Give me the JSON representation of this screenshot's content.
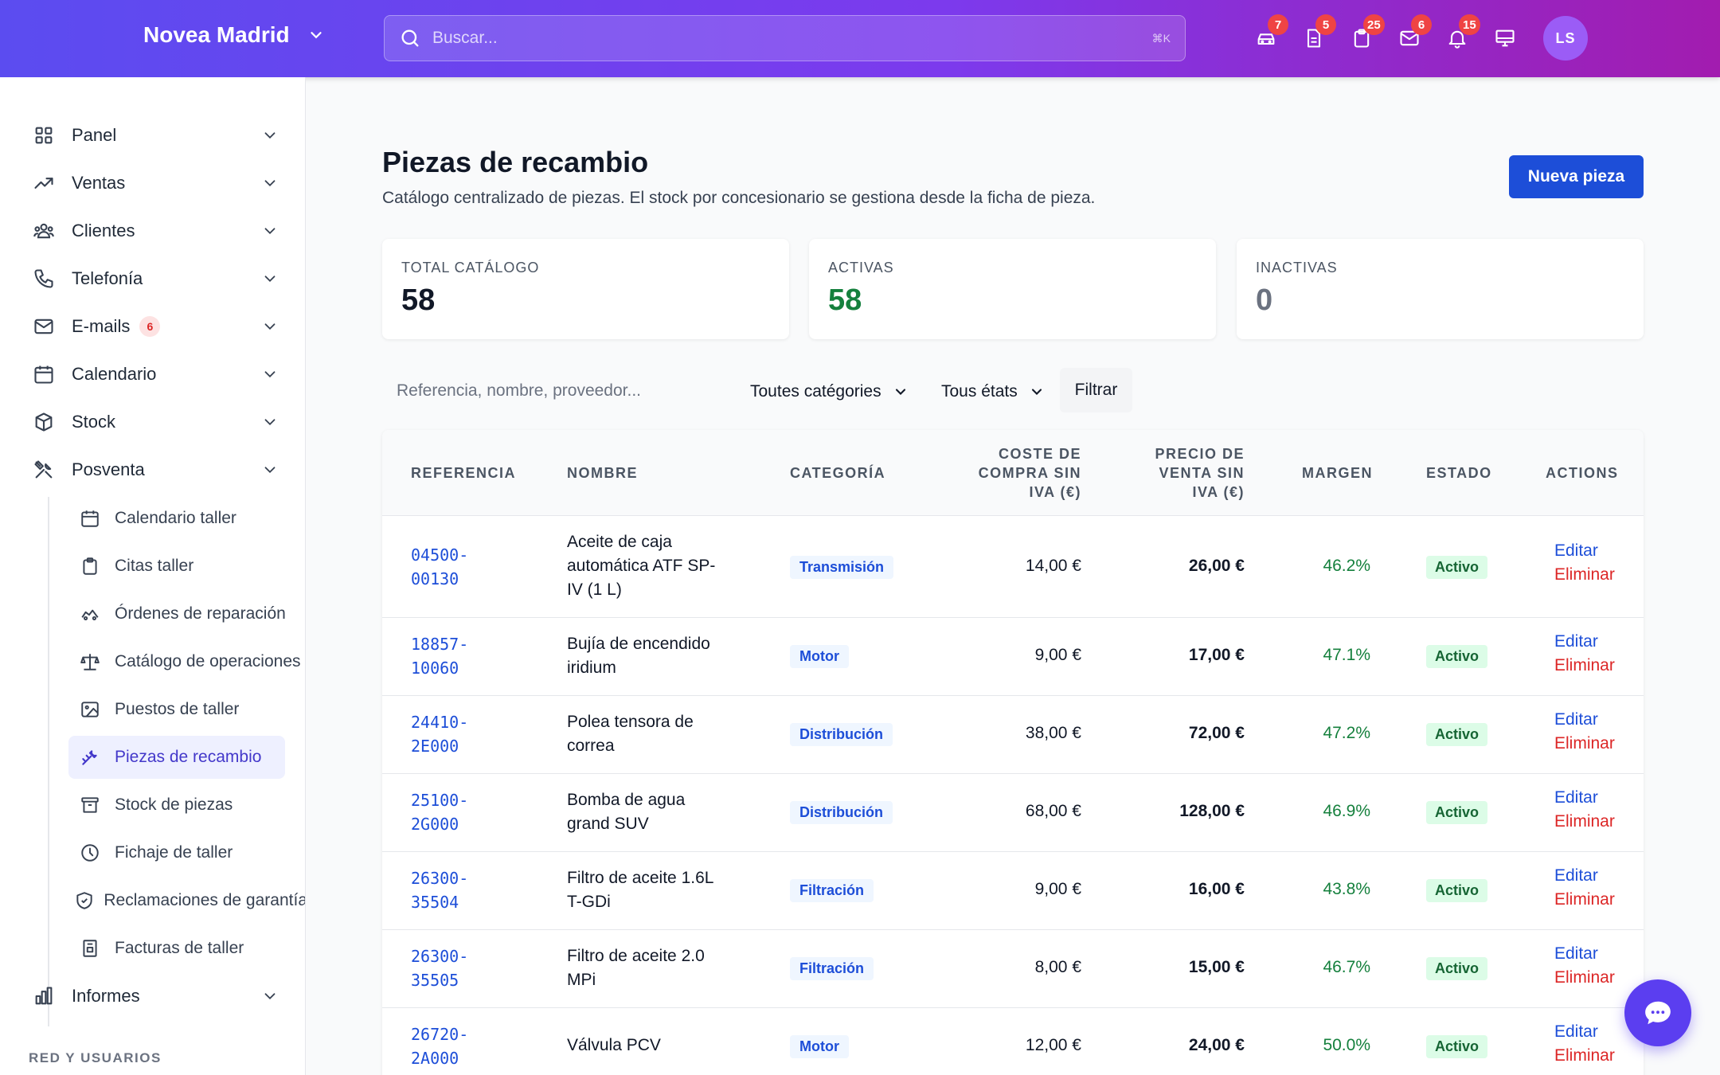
{
  "header": {
    "brand": "Novea Madrid",
    "search_placeholder": "Buscar...",
    "search_shortcut": "⌘K",
    "icons": [
      {
        "name": "car-icon",
        "badge": "7"
      },
      {
        "name": "document-icon",
        "badge": "5"
      },
      {
        "name": "clipboard-icon",
        "badge": "25"
      },
      {
        "name": "mail-icon",
        "badge": "6"
      },
      {
        "name": "bell-icon",
        "badge": "15"
      },
      {
        "name": "monitor-icon",
        "badge": ""
      }
    ],
    "avatar_initials": "LS"
  },
  "sidebar": {
    "items": [
      {
        "label": "Panel",
        "icon": "grid-icon"
      },
      {
        "label": "Ventas",
        "icon": "trend-icon"
      },
      {
        "label": "Clientes",
        "icon": "users-icon"
      },
      {
        "label": "Telefonía",
        "icon": "phone-icon"
      },
      {
        "label": "E-mails",
        "icon": "mail-icon",
        "badge": "6"
      },
      {
        "label": "Calendario",
        "icon": "calendar-icon"
      },
      {
        "label": "Stock",
        "icon": "box-icon"
      },
      {
        "label": "Posventa",
        "icon": "tools-icon"
      }
    ],
    "sub_items": [
      {
        "label": "Calendario taller",
        "icon": "calendar-icon"
      },
      {
        "label": "Citas taller",
        "icon": "clipboard-icon"
      },
      {
        "label": "Órdenes de reparación",
        "icon": "car-icon"
      },
      {
        "label": "Catálogo de operaciones",
        "icon": "scale-icon"
      },
      {
        "label": "Puestos de taller",
        "icon": "image-icon"
      },
      {
        "label": "Piezas de recambio",
        "icon": "wrench-icon",
        "active": true
      },
      {
        "label": "Stock de piezas",
        "icon": "archive-icon"
      },
      {
        "label": "Fichaje de taller",
        "icon": "clock-icon"
      },
      {
        "label": "Reclamaciones de garantía",
        "icon": "shield-icon"
      },
      {
        "label": "Facturas de taller",
        "icon": "invoice-icon"
      }
    ],
    "reports": {
      "label": "Informes",
      "icon": "chart-icon"
    },
    "section_label": "RED Y USUARIOS"
  },
  "main": {
    "title": "Piezas de recambio",
    "subtitle": "Catálogo centralizado de piezas. El stock por concesionario se gestiona desde la ficha de pieza.",
    "new_button": "Nueva pieza",
    "stats": [
      {
        "label": "TOTAL CATÁLOGO",
        "value": "58",
        "color": "#111827"
      },
      {
        "label": "ACTIVAS",
        "value": "58",
        "color": "#15803d"
      },
      {
        "label": "INACTIVAS",
        "value": "0",
        "color": "#6b7280"
      }
    ],
    "filters": {
      "search_placeholder": "Referencia, nombre, proveedor...",
      "category": "Toutes catégories",
      "state": "Tous états",
      "button": "Filtrar"
    },
    "table": {
      "columns": [
        "REFERENCIA",
        "NOMBRE",
        "CATEGORÍA",
        "COSTE DE COMPRA SIN IVA (€)",
        "PRECIO DE VENTA SIN IVA (€)",
        "MARGEN",
        "ESTADO",
        "ACTIONS"
      ],
      "rows": [
        {
          "ref": [
            "04500-",
            "00130"
          ],
          "name": [
            "Aceite de caja",
            "automática ATF SP-",
            "IV (1 L)"
          ],
          "cat": "Transmisión",
          "cost": "14,00 €",
          "price": "26,00 €",
          "margin": "46.2%",
          "state": "Activo"
        },
        {
          "ref": [
            "18857-",
            "10060"
          ],
          "name": [
            "Bujía de encendido",
            "iridium"
          ],
          "cat": "Motor",
          "cost": "9,00 €",
          "price": "17,00 €",
          "margin": "47.1%",
          "state": "Activo"
        },
        {
          "ref": [
            "24410-",
            "2E000"
          ],
          "name": [
            "Polea tensora de",
            "correa"
          ],
          "cat": "Distribución",
          "cost": "38,00 €",
          "price": "72,00 €",
          "margin": "47.2%",
          "state": "Activo"
        },
        {
          "ref": [
            "25100-",
            "2G000"
          ],
          "name": [
            "Bomba de agua",
            "grand SUV"
          ],
          "cat": "Distribución",
          "cost": "68,00 €",
          "price": "128,00 €",
          "margin": "46.9%",
          "state": "Activo"
        },
        {
          "ref": [
            "26300-",
            "35504"
          ],
          "name": [
            "Filtro de aceite 1.6L",
            "T-GDi"
          ],
          "cat": "Filtración",
          "cost": "9,00 €",
          "price": "16,00 €",
          "margin": "43.8%",
          "state": "Activo"
        },
        {
          "ref": [
            "26300-",
            "35505"
          ],
          "name": [
            "Filtro de aceite 2.0",
            "MPi"
          ],
          "cat": "Filtración",
          "cost": "8,00 €",
          "price": "15,00 €",
          "margin": "46.7%",
          "state": "Activo"
        },
        {
          "ref": [
            "26720-",
            "2A000"
          ],
          "name": [
            "Válvula PCV"
          ],
          "cat": "Motor",
          "cost": "12,00 €",
          "price": "24,00 €",
          "margin": "50.0%",
          "state": "Activo"
        }
      ],
      "edit_label": "Editar",
      "delete_label": "Eliminar"
    }
  },
  "colors": {
    "accent": "#1d4ed8",
    "brand_start": "#5b4cf0",
    "brand_end": "#a21caf",
    "danger": "#dc2626",
    "success": "#15803d"
  }
}
